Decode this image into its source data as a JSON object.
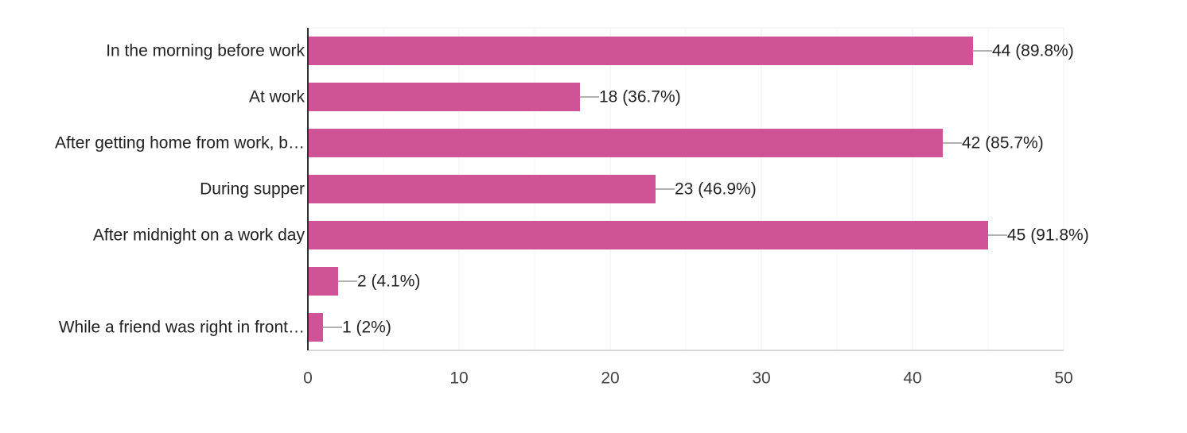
{
  "chart_data": {
    "type": "bar",
    "orientation": "horizontal",
    "categories": [
      "In the morning before work",
      "At work",
      "After getting home from work, b…",
      "During supper",
      "After midnight on a work day",
      "",
      "While a friend was right in front…"
    ],
    "values": [
      44,
      18,
      42,
      23,
      45,
      2,
      1
    ],
    "value_labels": [
      "44 (89.8%)",
      "18 (36.7%)",
      "42 (85.7%)",
      "23 (46.9%)",
      "45 (91.8%)",
      "2 (4.1%)",
      "1 (2%)"
    ],
    "xlim": [
      0,
      50
    ],
    "xticks": [
      0,
      10,
      20,
      30,
      40,
      50
    ],
    "xtick_labels": [
      "0",
      "10",
      "20",
      "30",
      "40",
      "50"
    ],
    "title": "",
    "xlabel": "",
    "ylabel": "",
    "grid": true,
    "legend": "none",
    "bar_color": "#d05398"
  }
}
